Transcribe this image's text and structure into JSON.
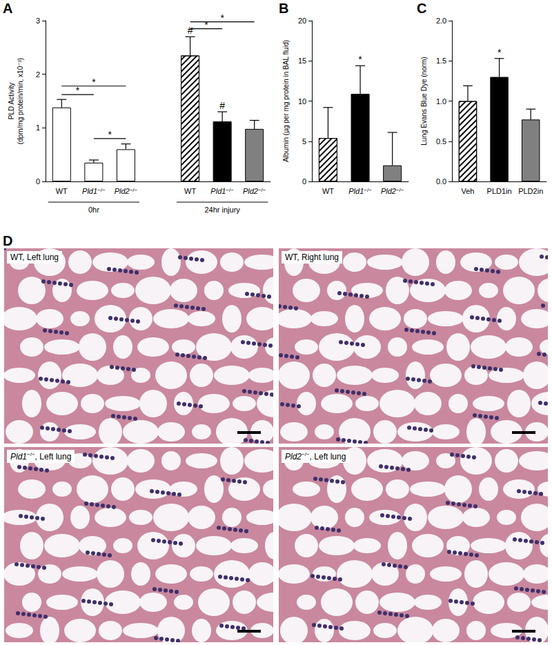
{
  "chart_data": [
    {
      "panel": "A",
      "type": "bar",
      "y_label": "PLD Activity\n(dpm/mg protein/min, x10⁻³)",
      "categories": [
        "WT",
        "Pld1−/−",
        "Pld2−/−",
        null,
        "WT",
        "Pld1−/−",
        "Pld2−/−"
      ],
      "values": [
        1.38,
        0.35,
        0.6,
        null,
        2.35,
        1.12,
        0.98
      ],
      "errors": [
        0.15,
        0.05,
        0.1,
        null,
        0.35,
        0.18,
        0.16
      ],
      "colors": [
        "#ffffff",
        "#ffffff",
        "#ffffff",
        null,
        "#ffffff",
        "#000000",
        "#808080"
      ],
      "hatched": [
        false,
        false,
        false,
        null,
        true,
        false,
        false
      ],
      "groups": [
        {
          "label": "0hr",
          "from": 0,
          "to": 2
        },
        {
          "label": "24hr injury",
          "from": 4,
          "to": 6
        }
      ],
      "brackets": [
        {
          "from": 0,
          "to": 1,
          "y": 1.62,
          "text": "*"
        },
        {
          "from": 0,
          "to": 2,
          "y": 1.78,
          "text": "*"
        },
        {
          "from": 1,
          "to": 2,
          "y": 0.8,
          "text": "*"
        },
        {
          "from": 4,
          "to": 5,
          "y": 2.85,
          "text": "*"
        },
        {
          "from": 4,
          "to": 6,
          "y": 2.98,
          "text": "*"
        }
      ],
      "marks": [
        {
          "index": 4,
          "text": "#"
        },
        {
          "index": 5,
          "text": "#"
        }
      ],
      "ylim": [
        0,
        3
      ],
      "yticks": [
        0,
        1,
        2,
        3
      ],
      "grid": false
    },
    {
      "panel": "B",
      "type": "bar",
      "y_label": "Albumin (µg per mg protein in BAL fluid)",
      "categories": [
        "WT",
        "Pld1−/−",
        "Pld2−/−"
      ],
      "values": [
        5.4,
        10.9,
        2.0
      ],
      "errors": [
        3.8,
        3.5,
        4.1
      ],
      "colors": [
        "#ffffff",
        "#000000",
        "#808080"
      ],
      "hatched": [
        true,
        false,
        false
      ],
      "marks": [
        {
          "index": 1,
          "text": "*"
        }
      ],
      "ylim": [
        0,
        20
      ],
      "yticks": [
        0,
        5,
        10,
        15,
        20
      ],
      "grid": false
    },
    {
      "panel": "C",
      "type": "bar",
      "y_label": "Lung Evans Blue Dye (norm)",
      "categories": [
        "Veh",
        "PLD1in",
        "PLD2in"
      ],
      "values": [
        1.0,
        1.3,
        0.77
      ],
      "errors": [
        0.19,
        0.23,
        0.13
      ],
      "colors": [
        "#ffffff",
        "#000000",
        "#808080"
      ],
      "hatched": [
        true,
        false,
        false
      ],
      "marks": [
        {
          "index": 1,
          "text": "*"
        }
      ],
      "ylim": [
        0,
        2
      ],
      "yticks": [
        {
          "value": 0,
          "label": "0.0"
        },
        0.5,
        {
          "value": 1,
          "label": "1.0"
        },
        1.5,
        {
          "value": 2,
          "label": "2.0"
        }
      ],
      "grid": false
    }
  ],
  "panel_d": {
    "panel": "D",
    "tiles": [
      {
        "label": "WT, Left lung"
      },
      {
        "label": "WT, Right lung"
      },
      {
        "label": "Pld1−/−, Left lung"
      },
      {
        "label": "Pld2−/−, Left lung"
      }
    ]
  }
}
